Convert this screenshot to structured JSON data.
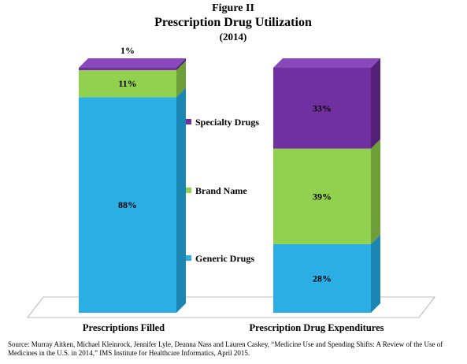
{
  "figure_label": "Figure II",
  "title": "Prescription Drug Utilization",
  "subtitle": "(2014)",
  "source": "Source: Murray Aitken, Michael Kleinrock, Jennifer Lyle, Deanna Nass and Lauren Caskey, “Medicine Use and Spending Shifts: A Review of the Use of Medicines in the U.S. in 2014,” IMS Institute for Healthcare Informatics, April 2015.",
  "chart_data": {
    "type": "bar",
    "stacked": true,
    "three_d": true,
    "categories": [
      "Prescriptions Filled",
      "Prescription Drug Expenditures"
    ],
    "series": [
      {
        "name": "Generic Drugs",
        "values": [
          88,
          28
        ],
        "labels": [
          "88%",
          "28%"
        ],
        "color": "#2aaee3",
        "side_color": "#1c86b3",
        "top_color": "#55c3ee"
      },
      {
        "name": "Brand Name",
        "values": [
          11,
          39
        ],
        "labels": [
          "11%",
          "39%"
        ],
        "color": "#92d050",
        "side_color": "#6d9e37",
        "top_color": "#a8dc6e"
      },
      {
        "name": "Specialty Drugs",
        "values": [
          1,
          33
        ],
        "labels": [
          "1%",
          "33%"
        ],
        "color": "#7030a0",
        "side_color": "#532178",
        "top_color": "#8a49bb"
      }
    ],
    "ylim": [
      0,
      100
    ],
    "grid": false,
    "legend_position": "center"
  }
}
